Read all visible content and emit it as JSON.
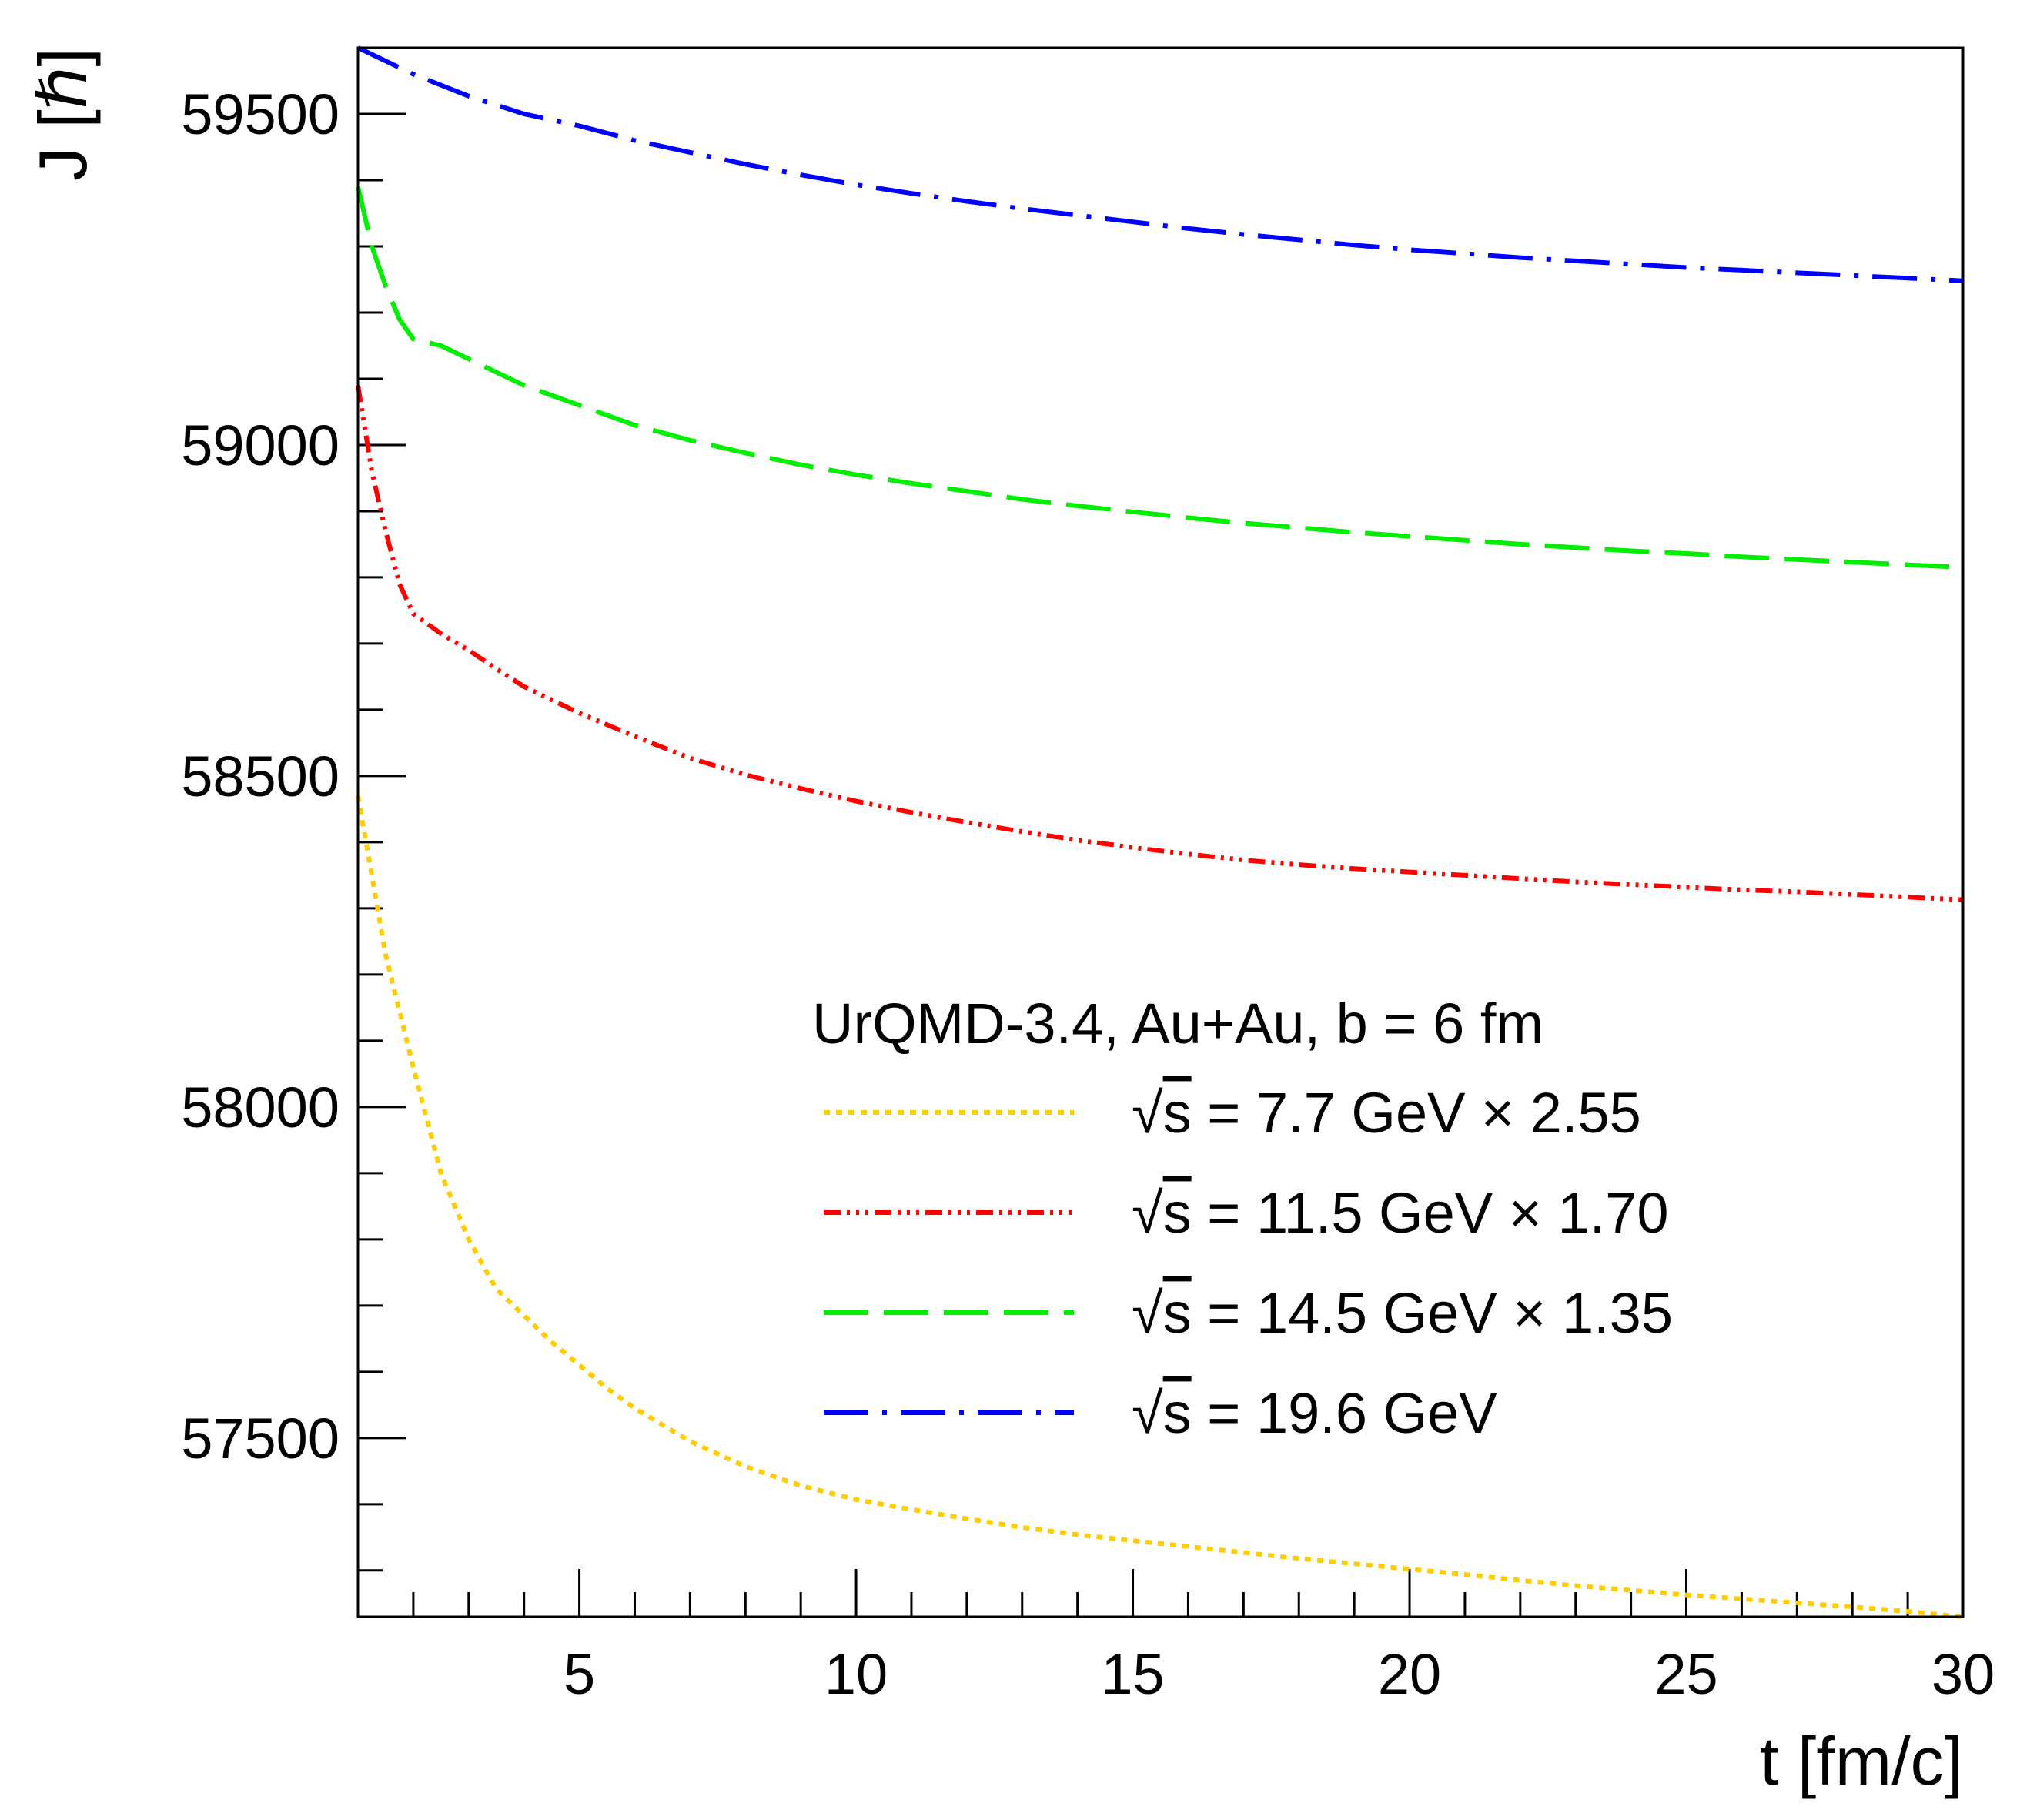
{
  "chart_data": {
    "type": "line",
    "title": "",
    "xlabel": "t [fm/c]",
    "ylabel": "J [ℏ]",
    "xlim": [
      1,
      30
    ],
    "ylim": [
      57230,
      59600
    ],
    "xticks": [
      5,
      10,
      15,
      20,
      25,
      30
    ],
    "yticks": [
      57500,
      58000,
      58500,
      59000,
      59500
    ],
    "xminor_step": 1,
    "yminor_step": 100,
    "grid": false,
    "legend": {
      "placement": "center-right",
      "header": "UrQMD-3.4, Au+Au, b = 6 fm",
      "sqrt_symbol": "√",
      "s_label": "s"
    },
    "series": [
      {
        "name": "= 7.7 GeV × 2.55",
        "color": "#ffcc00",
        "dash": "dotted",
        "x": [
          1,
          1.5,
          2,
          2.5,
          3,
          3.5,
          4,
          4.5,
          5,
          5.5,
          6,
          7,
          8,
          9,
          10,
          11,
          12,
          13,
          14,
          15,
          16,
          17,
          18,
          19,
          20,
          21,
          22,
          23,
          24,
          25,
          26,
          27,
          28,
          29,
          30
        ],
        "y": [
          58470,
          58230,
          58060,
          57900,
          57800,
          57725,
          57685,
          57645,
          57610,
          57575,
          57545,
          57495,
          57457,
          57428,
          57407,
          57392,
          57378,
          57365,
          57354,
          57345,
          57336,
          57327,
          57318,
          57310,
          57302,
          57294,
          57285,
          57277,
          57270,
          57263,
          57257,
          57251,
          57245,
          57238,
          57230
        ]
      },
      {
        "name": "= 11.5 GeV × 1.70",
        "color": "#ff0000",
        "dash": "dash-triple-dot",
        "x": [
          1,
          1.25,
          1.5,
          1.75,
          2,
          2.5,
          3,
          3.5,
          4,
          4.5,
          5,
          6,
          7,
          8,
          9,
          10,
          11,
          12,
          13,
          14,
          15,
          16,
          17,
          18,
          19,
          20,
          21,
          22,
          23,
          24,
          25,
          26,
          27,
          28,
          29,
          30
        ],
        "y": [
          59090,
          58960,
          58870,
          58790,
          58745,
          58715,
          58690,
          58662,
          58635,
          58615,
          58595,
          58560,
          58527,
          58502,
          58481,
          58462,
          58445,
          58430,
          58416,
          58403,
          58392,
          58382,
          58373,
          58366,
          58360,
          58355,
          58350,
          58345,
          58340,
          58336,
          58332,
          58328,
          58325,
          58321,
          58317,
          58313
        ]
      },
      {
        "name": "= 14.5 GeV × 1.35",
        "color": "#00ee00",
        "dash": "long-dash",
        "x": [
          1,
          1.25,
          1.5,
          1.75,
          2,
          2.5,
          3,
          3.5,
          4,
          4.5,
          5,
          6,
          7,
          8,
          9,
          10,
          11,
          12,
          13,
          14,
          15,
          16,
          17,
          18,
          19,
          20,
          21,
          22,
          23,
          24,
          25,
          26,
          27,
          28,
          29,
          30
        ],
        "y": [
          59390,
          59300,
          59240,
          59190,
          59160,
          59150,
          59130,
          59110,
          59090,
          59075,
          59060,
          59030,
          59007,
          58988,
          58970,
          58955,
          58942,
          58930,
          58918,
          58908,
          58899,
          58890,
          58882,
          58875,
          58868,
          58862,
          58856,
          58850,
          58845,
          58840,
          58836,
          58831,
          58827,
          58823,
          58819,
          58815
        ]
      },
      {
        "name": "= 19.6 GeV",
        "color": "#0000ff",
        "dash": "dash-dot",
        "x": [
          1,
          2,
          3,
          4,
          5,
          6,
          7,
          8,
          9,
          10,
          11,
          12,
          13,
          14,
          15,
          16,
          17,
          18,
          19,
          20,
          21,
          22,
          23,
          24,
          25,
          26,
          27,
          28,
          29,
          30
        ],
        "y": [
          59600,
          59560,
          59527,
          59500,
          59482,
          59460,
          59442,
          59424,
          59408,
          59393,
          59380,
          59368,
          59357,
          59347,
          59337,
          59327,
          59318,
          59310,
          59302,
          59295,
          59289,
          59283,
          59278,
          59273,
          59268,
          59264,
          59260,
          59256,
          59252,
          59248
        ]
      }
    ]
  }
}
